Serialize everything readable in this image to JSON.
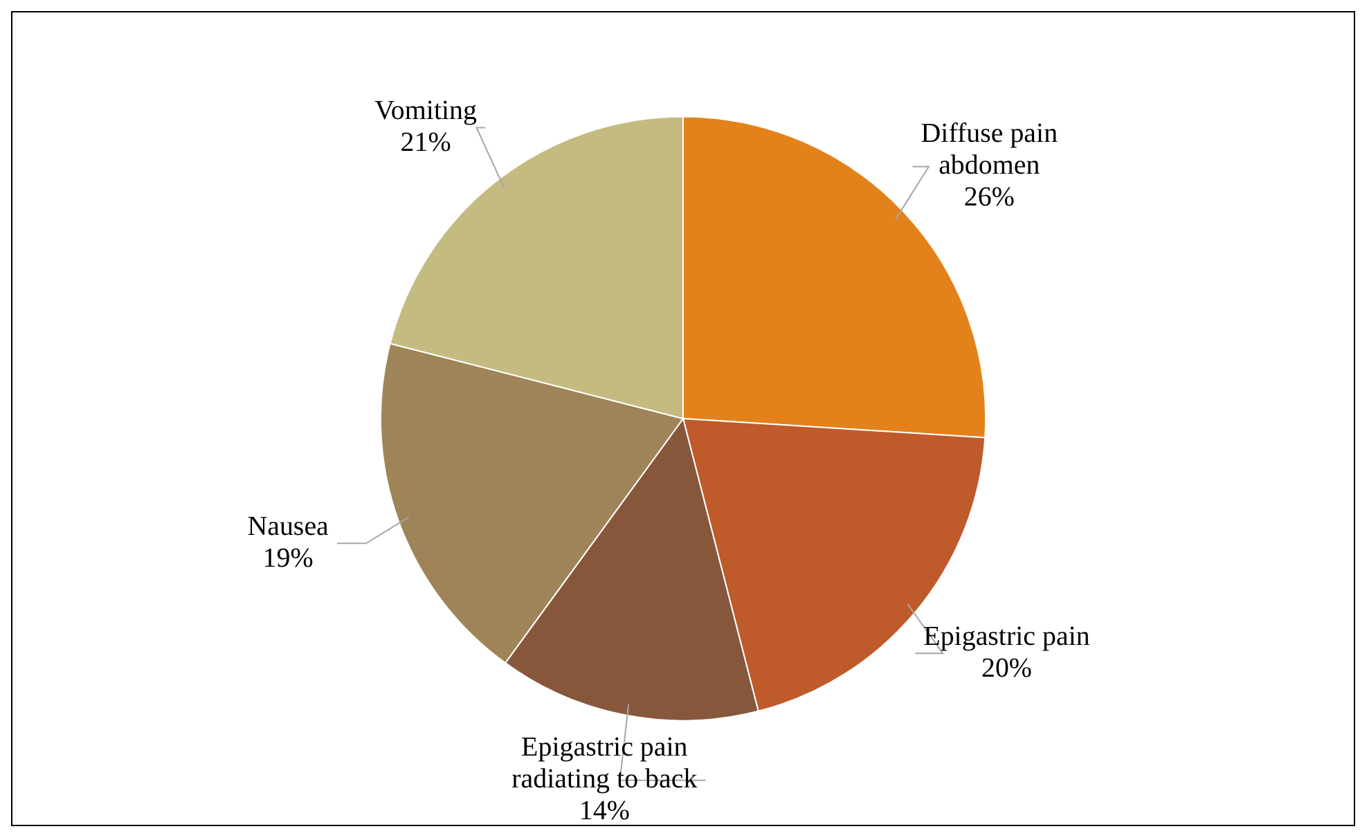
{
  "chart_data": {
    "type": "pie",
    "categories": [
      "Diffuse pain abdomen",
      "Epigastric pain",
      "Epigastric pain radiating to back",
      "Nausea",
      "Vomiting"
    ],
    "values": [
      26,
      20,
      14,
      19,
      21
    ],
    "colors": [
      "#e3821a",
      "#bf5a2a",
      "#87573c",
      "#9e8458",
      "#c4bb80"
    ],
    "value_labels": [
      "26%",
      "20%",
      "14%",
      "19%",
      "21%"
    ],
    "legend": false
  }
}
